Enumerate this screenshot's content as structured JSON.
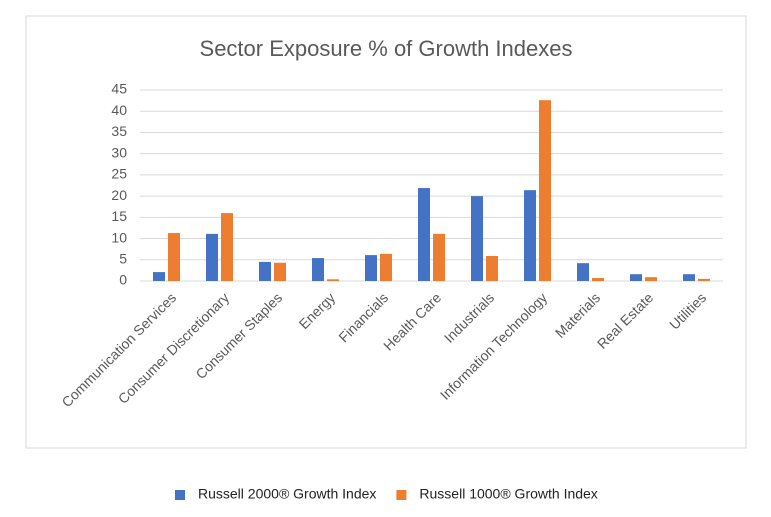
{
  "chart_data": {
    "type": "bar",
    "title": "Sector Exposure % of Growth Indexes",
    "categories": [
      "Communication Services",
      "Consumer Discretionary",
      "Consumer Staples",
      "Energy",
      "Financials",
      "Health Care",
      "Industrials",
      "Information Technology",
      "Materials",
      "Real Estate",
      "Utilities"
    ],
    "series": [
      {
        "name": "Russell 2000® Growth Index",
        "color": "#4472c4",
        "values": [
          2.1,
          11.1,
          4.5,
          5.4,
          6.1,
          21.9,
          20.0,
          21.4,
          4.2,
          1.6,
          1.6
        ]
      },
      {
        "name": "Russell 1000® Growth Index",
        "color": "#ed7d31",
        "values": [
          11.3,
          16.0,
          4.3,
          0.4,
          6.4,
          11.1,
          5.9,
          42.6,
          0.7,
          0.9,
          0.5
        ]
      }
    ],
    "ylim": [
      0,
      45
    ],
    "yticks": [
      0,
      5,
      10,
      15,
      20,
      25,
      30,
      35,
      40,
      45
    ],
    "grid": true,
    "legend": "bottom"
  }
}
